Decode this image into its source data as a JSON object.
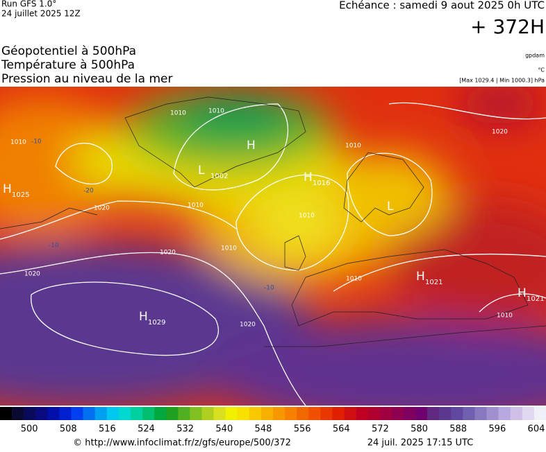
{
  "header": {
    "run": "Run GFS 1.0°",
    "run_date": "24 juillet 2025 12Z",
    "valid": "Echéance : samedi 9 aout 2025 0h UTC",
    "lead": "+ 372H",
    "layers": [
      "Géopotentiel à 500hPa",
      "Température à 500hPa",
      "Pression au niveau de la mer"
    ],
    "units": [
      "gpdam",
      "°C",
      "[Max 1029.4 | Min 1000.3] hPa"
    ]
  },
  "map": {
    "centers": [
      {
        "letter": "H",
        "value": 1025
      },
      {
        "letter": "H",
        "value": 1029
      },
      {
        "letter": "H",
        "value": 1016
      },
      {
        "letter": "H",
        "value": 1021
      },
      {
        "letter": "H",
        "value": 1021
      },
      {
        "letter": "L",
        "value": 1002
      },
      {
        "letter": "H"
      },
      {
        "letter": "L"
      }
    ],
    "isobar_labels": [
      1010,
      1010,
      1010,
      1010,
      1020,
      1020,
      1020,
      1020,
      1010,
      1010,
      1010,
      1020,
      1010,
      1010
    ],
    "temp_labels": [
      -10,
      -20,
      -10,
      -10
    ]
  },
  "colorbar": {
    "lim": [
      494,
      606
    ],
    "ticks": [
      500,
      508,
      516,
      524,
      532,
      540,
      548,
      556,
      564,
      572,
      580,
      588,
      596,
      604
    ],
    "colors": [
      "#000000",
      "#0a0a30",
      "#0a0a5a",
      "#0a0a80",
      "#0010a8",
      "#0020d0",
      "#0040f0",
      "#0070f0",
      "#00a0f0",
      "#00c8f0",
      "#00d8d0",
      "#00d0a0",
      "#00c070",
      "#00a840",
      "#20a020",
      "#50b020",
      "#80c020",
      "#b0d020",
      "#d8e020",
      "#f0f000",
      "#f8e000",
      "#f8c800",
      "#f8b000",
      "#f89800",
      "#f88000",
      "#f06800",
      "#f05000",
      "#e83800",
      "#e02000",
      "#d01010",
      "#c00020",
      "#b00030",
      "#a00040",
      "#900050",
      "#800060",
      "#700070",
      "#602880",
      "#5a3890",
      "#6048a0",
      "#7060b0",
      "#8878c0",
      "#a090d0",
      "#b8a8e0",
      "#d0c0e8",
      "#e0d8f0",
      "#f0f0f8"
    ]
  },
  "footer": {
    "url": "© http://www.infoclimat.fr/z/gfs/europe/500/372",
    "date": "24 juil. 2025 17:15 UTC"
  }
}
